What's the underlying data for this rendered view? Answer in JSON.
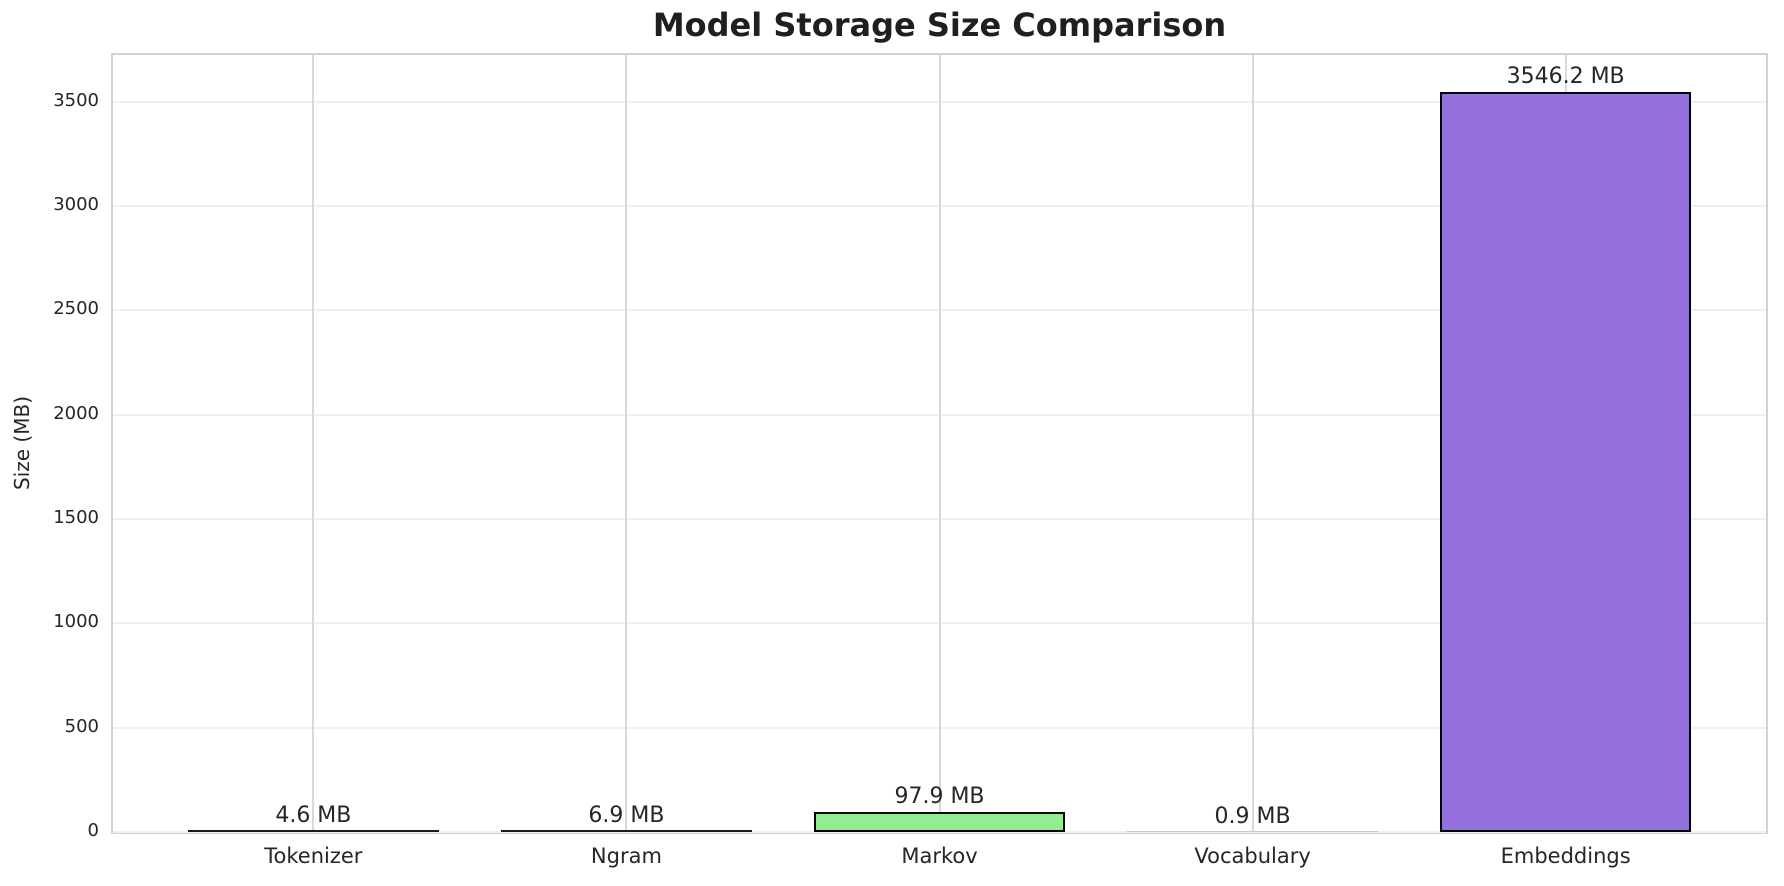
{
  "chart_data": {
    "type": "bar",
    "title": "Model Storage Size Comparison",
    "ylabel": "Size (MB)",
    "xlabel": "",
    "categories": [
      "Tokenizer",
      "Ngram",
      "Markov",
      "Vocabulary",
      "Embeddings"
    ],
    "values": [
      4.6,
      6.9,
      97.9,
      0.9,
      3546.2
    ],
    "value_labels": [
      "4.6 MB",
      "6.9 MB",
      "97.9 MB",
      "0.9 MB",
      "3546.2 MB"
    ],
    "unit": "MB",
    "bar_colors": [
      "#1a1a1a",
      "#1a1a1a",
      "#90ee90",
      "#c9c9c9",
      "#9370db"
    ],
    "bar_edge_color": "#000000",
    "bar_width_fraction": 0.8,
    "yticks": [
      "0",
      "500",
      "1000",
      "1500",
      "2000",
      "2500",
      "3000",
      "3500"
    ],
    "ytick_values": [
      0,
      500,
      1000,
      1500,
      2000,
      2500,
      3000,
      3500
    ],
    "ylim": [
      0,
      3723
    ],
    "xlim": [
      -0.64,
      4.64
    ],
    "grid": true,
    "legend": "none",
    "colors": {
      "h_gridline": "#f0f0f0",
      "v_gridline": "#d9d9d9",
      "spine": "#d2d2d2",
      "tick_text": "#262626",
      "title_text": "#1f1f1f",
      "background": "#ffffff"
    }
  }
}
